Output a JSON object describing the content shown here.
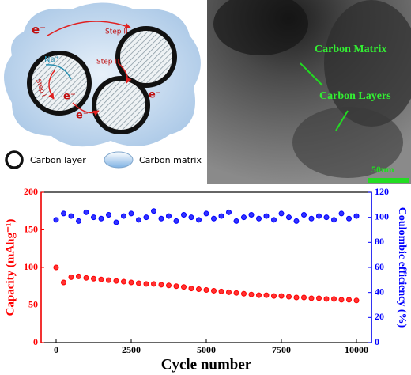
{
  "figure": {
    "schematic": {
      "labels": [
        "e⁻",
        "Step II",
        "Na⁺",
        "Step I",
        "Step II",
        "e⁻",
        "e⁻",
        "e⁻"
      ],
      "legend": [
        "Carbon layer",
        "Carbon matrix"
      ]
    },
    "tem": {
      "labels": [
        "Carbon Matrix",
        "Carbon Layers"
      ],
      "scale_bar": "50nm"
    }
  },
  "chart_data": {
    "type": "scatter",
    "xlabel": "Cycle number",
    "ylabel": "Capacity (mAhg⁻¹)",
    "y2label": "Coulombic efficiency (%)",
    "x": [
      0,
      250,
      500,
      750,
      1000,
      1250,
      1500,
      1750,
      2000,
      2250,
      2500,
      2750,
      3000,
      3250,
      3500,
      3750,
      4000,
      4250,
      4500,
      4750,
      5000,
      5250,
      5500,
      5750,
      6000,
      6250,
      6500,
      6750,
      7000,
      7250,
      7500,
      7750,
      8000,
      8250,
      8500,
      8750,
      9000,
      9250,
      9500,
      9750,
      10000
    ],
    "series": [
      {
        "name": "Capacity",
        "color": "#ff0000",
        "axis": "y",
        "values": [
          100,
          80,
          87,
          88,
          86,
          85,
          84,
          83,
          82,
          81,
          80,
          79,
          78,
          78,
          77,
          76,
          75,
          74,
          72,
          71,
          70,
          69,
          68,
          67,
          66,
          65,
          64,
          63,
          63,
          62,
          62,
          61,
          60,
          60,
          59,
          59,
          58,
          58,
          57,
          57,
          56
        ]
      },
      {
        "name": "Coulombic efficiency",
        "color": "#0000ff",
        "axis": "y2",
        "values": [
          98,
          103,
          101,
          97,
          104,
          100,
          99,
          102,
          96,
          101,
          103,
          98,
          100,
          105,
          99,
          101,
          97,
          102,
          100,
          98,
          103,
          99,
          101,
          104,
          97,
          100,
          102,
          99,
          101,
          98,
          103,
          100,
          97,
          102,
          99,
          101,
          100,
          98,
          103,
          99,
          101
        ]
      }
    ],
    "xlim": [
      -500,
      10500
    ],
    "xticks": [
      0,
      2500,
      5000,
      7500,
      10000
    ],
    "ylim": [
      0,
      200
    ],
    "yticks": [
      0,
      50,
      100,
      150,
      200
    ],
    "y2lim": [
      0,
      120
    ],
    "y2ticks": [
      0,
      20,
      40,
      60,
      80,
      100,
      120
    ]
  }
}
